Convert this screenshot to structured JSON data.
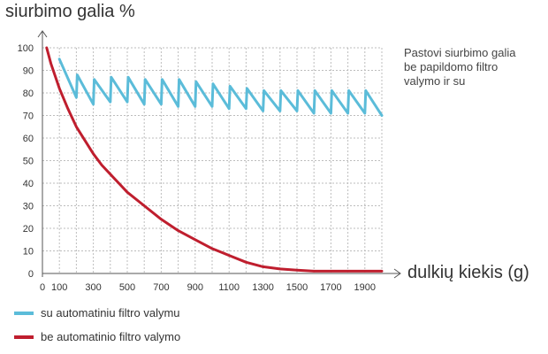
{
  "chart_data": {
    "type": "line",
    "ylabel": "siurbimo galia %",
    "xlabel": "dulkių kiekis (g)",
    "xlim": [
      0,
      2000
    ],
    "ylim": [
      0,
      100
    ],
    "x_ticks": [
      "0",
      "100",
      "300",
      "500",
      "700",
      "900",
      "1100",
      "1300",
      "1500",
      "1700",
      "1900"
    ],
    "y_ticks": [
      "0",
      "10",
      "20",
      "30",
      "40",
      "50",
      "60",
      "70",
      "80",
      "90",
      "100"
    ],
    "grid": true,
    "annotation": [
      "Pastovi siurbimo galia",
      "be papildomo filtro",
      "valymo ir su"
    ],
    "series": [
      {
        "name": "su automatiniu filtro valymu",
        "color": "#5bbcd9",
        "x": [
          100,
          200,
          205,
          300,
          305,
          400,
          405,
          500,
          505,
          600,
          605,
          700,
          705,
          800,
          805,
          900,
          905,
          1000,
          1005,
          1100,
          1105,
          1200,
          1205,
          1300,
          1305,
          1400,
          1405,
          1500,
          1505,
          1600,
          1605,
          1700,
          1705,
          1800,
          1805,
          1900,
          1905,
          2000
        ],
        "y": [
          95,
          78,
          88,
          75,
          86,
          76,
          87,
          76,
          87,
          75,
          86,
          75,
          86,
          74,
          86,
          74,
          85,
          74,
          84,
          73,
          83,
          73,
          82,
          72,
          81,
          72,
          81,
          72,
          81,
          71,
          81,
          71,
          81,
          71,
          81,
          71,
          81,
          70
        ]
      },
      {
        "name": "be automatinio filtro valymo",
        "color": "#bf1e2e",
        "x": [
          25,
          50,
          100,
          150,
          200,
          250,
          300,
          350,
          400,
          450,
          500,
          600,
          700,
          800,
          900,
          1000,
          1100,
          1200,
          1300,
          1400,
          1500,
          1600,
          1700,
          1800,
          1900,
          2000
        ],
        "y": [
          100,
          93,
          82,
          73,
          65,
          59,
          53,
          48,
          44,
          40,
          36,
          30,
          24,
          19,
          15,
          11,
          8,
          5,
          3,
          2,
          1.5,
          1,
          1,
          1,
          1,
          1
        ]
      }
    ],
    "legend_placement": "bottom-left"
  }
}
